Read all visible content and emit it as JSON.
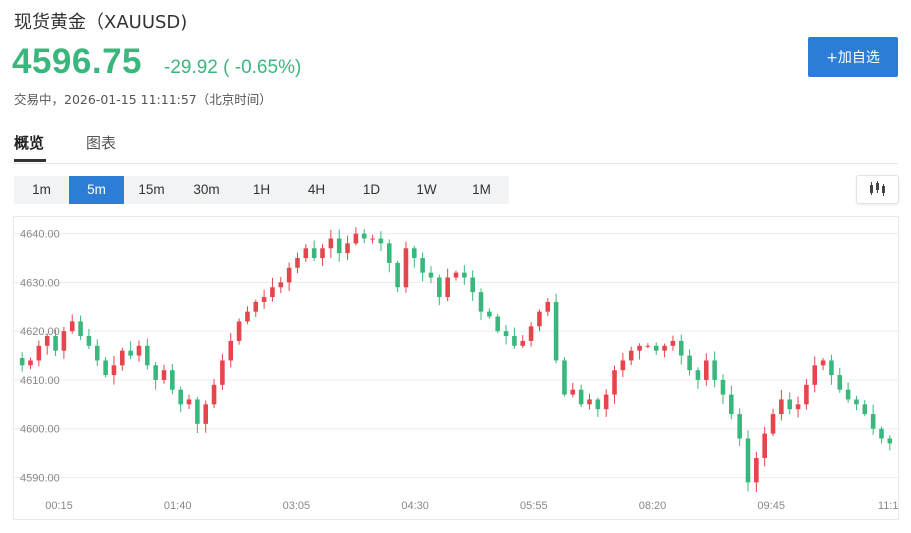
{
  "header": {
    "title": "现货黄金（XAUUSD)",
    "price": "4596.75",
    "change": "-29.92 ( -0.65%)",
    "status": "交易中，2026-01-15 11:11:57（北京时间）",
    "add_button": "+加自选"
  },
  "tabs": [
    {
      "label": "概览",
      "active": true
    },
    {
      "label": "图表",
      "active": false
    }
  ],
  "periods": [
    {
      "label": "1m",
      "active": false
    },
    {
      "label": "5m",
      "active": true
    },
    {
      "label": "15m",
      "active": false
    },
    {
      "label": "30m",
      "active": false
    },
    {
      "label": "1H",
      "active": false
    },
    {
      "label": "4H",
      "active": false
    },
    {
      "label": "1D",
      "active": false
    },
    {
      "label": "1W",
      "active": false
    },
    {
      "label": "1M",
      "active": false
    }
  ],
  "chart_type_icon": "candlestick-icon",
  "colors": {
    "up": "#e5454d",
    "down": "#3ab77d",
    "accent": "#2c7dd6",
    "grid": "#ececec"
  },
  "chart_data": {
    "type": "candlestick",
    "grid": true,
    "ylim": [
      4586,
      4643
    ],
    "y_ticks": [
      "4590.00",
      "4600.00",
      "4610.00",
      "4620.00",
      "4630.00",
      "4640.00"
    ],
    "x_ticks": [
      "00:15",
      "01:40",
      "03:05",
      "04:30",
      "05:55",
      "08:20",
      "09:45",
      "11:1"
    ],
    "closes": [
      4613,
      4614,
      4617,
      4619,
      4616,
      4620,
      4622,
      4619,
      4617,
      4614,
      4611,
      4613,
      4616,
      4615,
      4617,
      4613,
      4610,
      4612,
      4608,
      4605,
      4606,
      4601,
      4605,
      4609,
      4614,
      4618,
      4622,
      4624,
      4626,
      4627,
      4629,
      4630,
      4633,
      4635,
      4637,
      4635,
      4637,
      4639,
      4636,
      4638,
      4640,
      4639,
      4639,
      4638,
      4634,
      4629,
      4637,
      4635,
      4632,
      4631,
      4627,
      4631,
      4632,
      4631,
      4628,
      4624,
      4623,
      4620,
      4619,
      4617,
      4618,
      4621,
      4624,
      4626,
      4614,
      4607,
      4608,
      4605,
      4606,
      4604,
      4607,
      4612,
      4614,
      4616,
      4617,
      4617,
      4616,
      4617,
      4618,
      4615,
      4612,
      4610,
      4614,
      4610,
      4607,
      4603,
      4598,
      4589,
      4594,
      4599,
      4603,
      4606,
      4604,
      4605,
      4609,
      4613,
      4614,
      4611,
      4608,
      4606,
      4605,
      4603,
      4600,
      4598,
      4597
    ]
  }
}
